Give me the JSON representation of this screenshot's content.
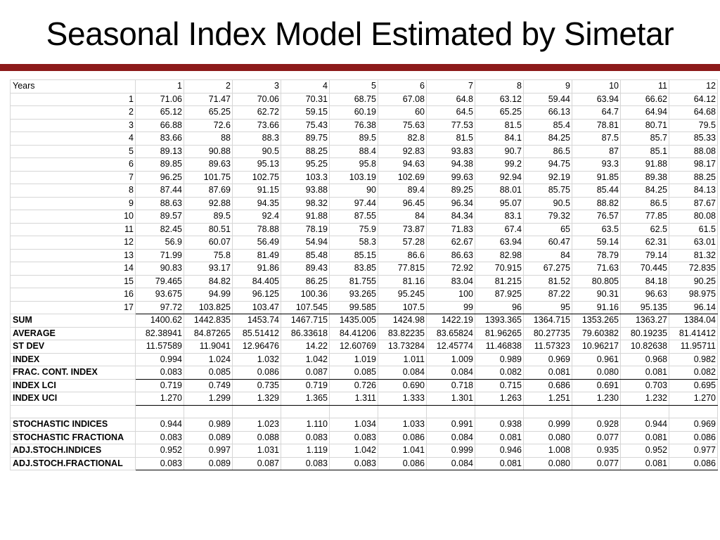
{
  "title": "Seasonal Index Model Estimated by Simetar",
  "header": {
    "label": "Years",
    "columns": [
      "1",
      "2",
      "3",
      "4",
      "5",
      "6",
      "7",
      "8",
      "9",
      "10",
      "11",
      "12"
    ]
  },
  "years": [
    {
      "n": "1",
      "v": [
        "71.06",
        "71.47",
        "70.06",
        "70.31",
        "68.75",
        "67.08",
        "64.8",
        "63.12",
        "59.44",
        "63.94",
        "66.62",
        "64.12"
      ]
    },
    {
      "n": "2",
      "v": [
        "65.12",
        "65.25",
        "62.72",
        "59.15",
        "60.19",
        "60",
        "64.5",
        "65.25",
        "66.13",
        "64.7",
        "64.94",
        "64.68"
      ]
    },
    {
      "n": "3",
      "v": [
        "66.88",
        "72.6",
        "73.66",
        "75.43",
        "76.38",
        "75.63",
        "77.53",
        "81.5",
        "85.4",
        "78.81",
        "80.71",
        "79.5"
      ]
    },
    {
      "n": "4",
      "v": [
        "83.66",
        "88",
        "88.3",
        "89.75",
        "89.5",
        "82.8",
        "81.5",
        "84.1",
        "84.25",
        "87.5",
        "85.7",
        "85.33"
      ]
    },
    {
      "n": "5",
      "v": [
        "89.13",
        "90.88",
        "90.5",
        "88.25",
        "88.4",
        "92.83",
        "93.83",
        "90.7",
        "86.5",
        "87",
        "85.1",
        "88.08"
      ]
    },
    {
      "n": "6",
      "v": [
        "89.85",
        "89.63",
        "95.13",
        "95.25",
        "95.8",
        "94.63",
        "94.38",
        "99.2",
        "94.75",
        "93.3",
        "91.88",
        "98.17"
      ]
    },
    {
      "n": "7",
      "v": [
        "96.25",
        "101.75",
        "102.75",
        "103.3",
        "103.19",
        "102.69",
        "99.63",
        "92.94",
        "92.19",
        "91.85",
        "89.38",
        "88.25"
      ]
    },
    {
      "n": "8",
      "v": [
        "87.44",
        "87.69",
        "91.15",
        "93.88",
        "90",
        "89.4",
        "89.25",
        "88.01",
        "85.75",
        "85.44",
        "84.25",
        "84.13"
      ]
    },
    {
      "n": "9",
      "v": [
        "88.63",
        "92.88",
        "94.35",
        "98.32",
        "97.44",
        "96.45",
        "96.34",
        "95.07",
        "90.5",
        "88.82",
        "86.5",
        "87.67"
      ]
    },
    {
      "n": "10",
      "v": [
        "89.57",
        "89.5",
        "92.4",
        "91.88",
        "87.55",
        "84",
        "84.34",
        "83.1",
        "79.32",
        "76.57",
        "77.85",
        "80.08"
      ]
    },
    {
      "n": "11",
      "v": [
        "82.45",
        "80.51",
        "78.88",
        "78.19",
        "75.9",
        "73.87",
        "71.83",
        "67.4",
        "65",
        "63.5",
        "62.5",
        "61.5"
      ]
    },
    {
      "n": "12",
      "v": [
        "56.9",
        "60.07",
        "56.49",
        "54.94",
        "58.3",
        "57.28",
        "62.67",
        "63.94",
        "60.47",
        "59.14",
        "62.31",
        "63.01"
      ]
    },
    {
      "n": "13",
      "v": [
        "71.99",
        "75.8",
        "81.49",
        "85.48",
        "85.15",
        "86.6",
        "86.63",
        "82.98",
        "84",
        "78.79",
        "79.14",
        "81.32"
      ]
    },
    {
      "n": "14",
      "v": [
        "90.83",
        "93.17",
        "91.86",
        "89.43",
        "83.85",
        "77.815",
        "72.92",
        "70.915",
        "67.275",
        "71.63",
        "70.445",
        "72.835"
      ]
    },
    {
      "n": "15",
      "v": [
        "79.465",
        "84.82",
        "84.405",
        "86.25",
        "81.755",
        "81.16",
        "83.04",
        "81.215",
        "81.52",
        "80.805",
        "84.18",
        "90.25"
      ]
    },
    {
      "n": "16",
      "v": [
        "93.675",
        "94.99",
        "96.125",
        "100.36",
        "93.265",
        "95.245",
        "100",
        "87.925",
        "87.22",
        "90.31",
        "96.63",
        "98.975"
      ]
    },
    {
      "n": "17",
      "v": [
        "97.72",
        "103.825",
        "103.47",
        "107.545",
        "99.585",
        "107.5",
        "99",
        "96",
        "95",
        "91.16",
        "95.135",
        "96.14"
      ]
    }
  ],
  "stats": [
    {
      "label": "SUM",
      "v": [
        "1400.62",
        "1442.835",
        "1453.74",
        "1467.715",
        "1435.005",
        "1424.98",
        "1422.19",
        "1393.365",
        "1364.715",
        "1353.265",
        "1363.27",
        "1384.04"
      ]
    },
    {
      "label": "AVERAGE",
      "v": [
        "82.38941",
        "84.87265",
        "85.51412",
        "86.33618",
        "84.41206",
        "83.82235",
        "83.65824",
        "81.96265",
        "80.27735",
        "79.60382",
        "80.19235",
        "81.41412"
      ]
    },
    {
      "label": "ST DEV",
      "v": [
        "11.57589",
        "11.9041",
        "12.96476",
        "14.22",
        "12.60769",
        "13.73284",
        "12.45774",
        "11.46838",
        "11.57323",
        "10.96217",
        "10.82638",
        "11.95711"
      ]
    },
    {
      "label": "INDEX",
      "v": [
        "0.994",
        "1.024",
        "1.032",
        "1.042",
        "1.019",
        "1.011",
        "1.009",
        "0.989",
        "0.969",
        "0.961",
        "0.968",
        "0.982"
      ]
    },
    {
      "label": "FRAC. CONT. INDEX",
      "v": [
        "0.083",
        "0.085",
        "0.086",
        "0.087",
        "0.085",
        "0.084",
        "0.084",
        "0.082",
        "0.081",
        "0.080",
        "0.081",
        "0.082"
      ]
    },
    {
      "label": "INDEX LCI",
      "v": [
        "0.719",
        "0.749",
        "0.735",
        "0.719",
        "0.726",
        "0.690",
        "0.718",
        "0.715",
        "0.686",
        "0.691",
        "0.703",
        "0.695"
      ]
    },
    {
      "label": "INDEX UCI",
      "v": [
        "1.270",
        "1.299",
        "1.329",
        "1.365",
        "1.311",
        "1.333",
        "1.301",
        "1.263",
        "1.251",
        "1.230",
        "1.232",
        "1.270"
      ]
    }
  ],
  "stochastic": [
    {
      "label": "STOCHASTIC INDICES",
      "v": [
        "0.944",
        "0.989",
        "1.023",
        "1.110",
        "1.034",
        "1.033",
        "0.991",
        "0.938",
        "0.999",
        "0.928",
        "0.944",
        "0.969"
      ]
    },
    {
      "label": "STOCHASTIC FRACTIONA",
      "v": [
        "0.083",
        "0.089",
        "0.088",
        "0.083",
        "0.083",
        "0.086",
        "0.084",
        "0.081",
        "0.080",
        "0.077",
        "0.081",
        "0.086"
      ]
    },
    {
      "label": "ADJ.STOCH.INDICES",
      "v": [
        "0.952",
        "0.997",
        "1.031",
        "1.119",
        "1.042",
        "1.041",
        "0.999",
        "0.946",
        "1.008",
        "0.935",
        "0.952",
        "0.977"
      ]
    },
    {
      "label": "ADJ.STOCH.FRACTIONAL",
      "v": [
        "0.083",
        "0.089",
        "0.087",
        "0.083",
        "0.083",
        "0.086",
        "0.084",
        "0.081",
        "0.080",
        "0.077",
        "0.081",
        "0.086"
      ]
    }
  ]
}
